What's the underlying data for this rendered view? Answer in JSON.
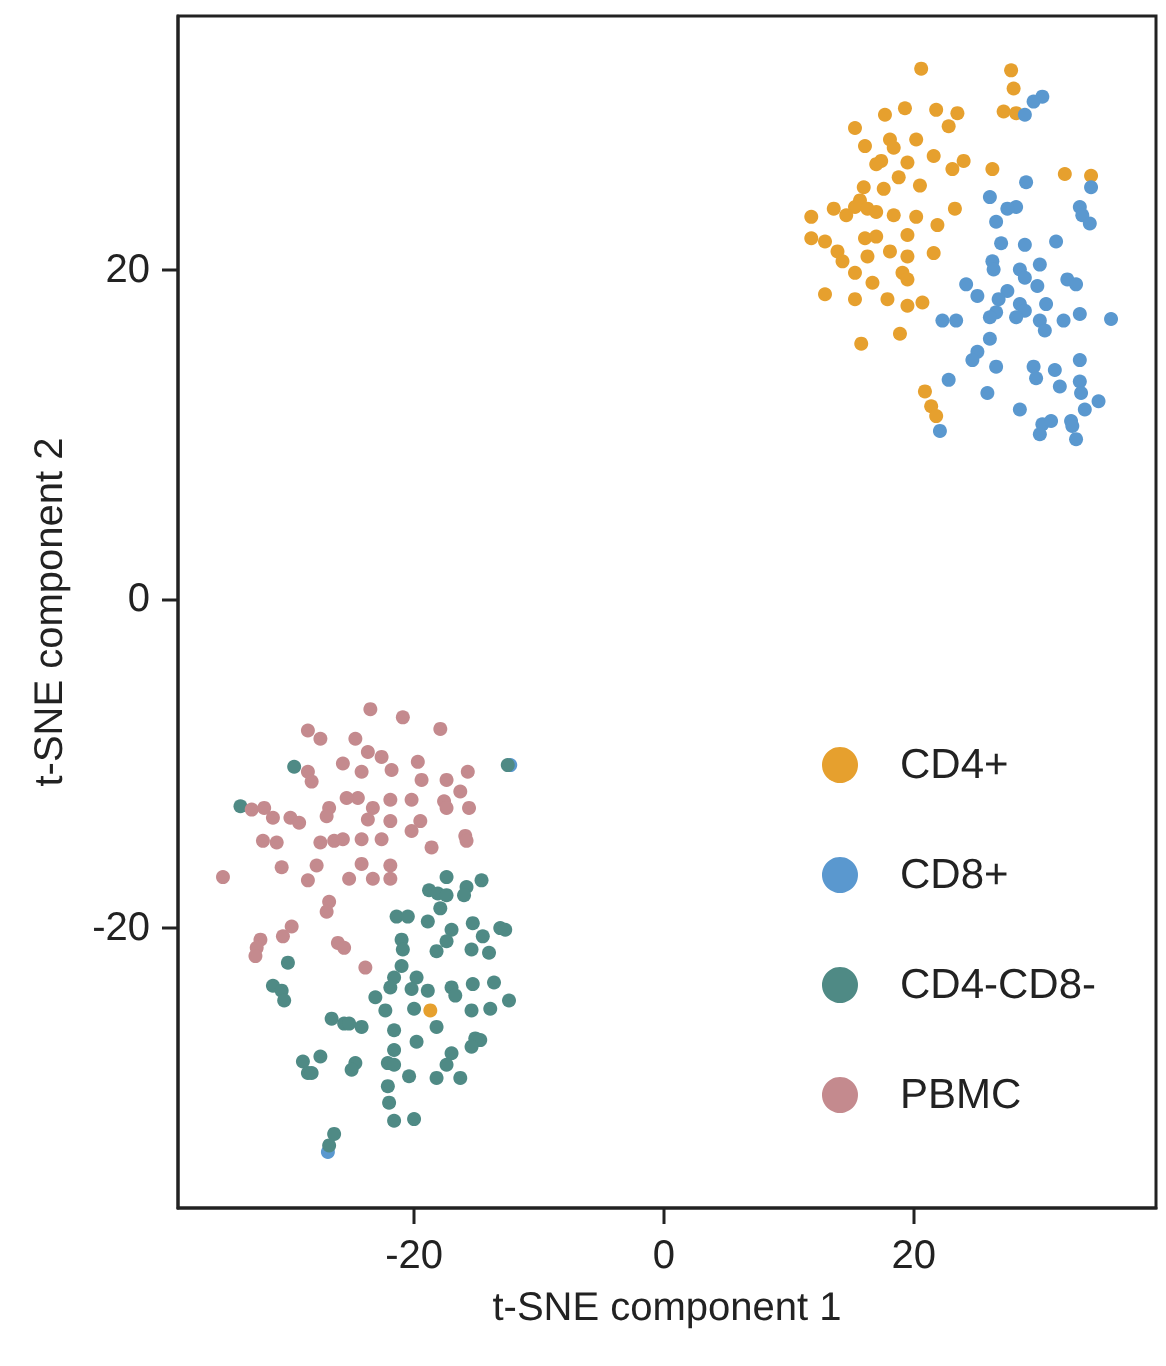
{
  "chart_data": {
    "type": "scatter",
    "xlabel": "t-SNE component 1",
    "ylabel": "t-SNE component 2",
    "xlim": [
      -38.9,
      39.4
    ],
    "ylim": [
      -37,
      35.4
    ],
    "xticks": [
      -20,
      0,
      20
    ],
    "yticks": [
      -20,
      0,
      20
    ],
    "grid": false,
    "legend": "bottom right",
    "marker": "circle",
    "series": [
      {
        "name": "CD4+",
        "color": "#e6a02e",
        "x": [
          20.6,
          27.8,
          28.0,
          27.2,
          28.2,
          17.7,
          19.3,
          21.8,
          23.5,
          22.8,
          15.3,
          18.1,
          20.2,
          16.1,
          18.4,
          17.4,
          21.6,
          17.0,
          19.5,
          24.0,
          23.1,
          26.3,
          32.1,
          34.2,
          18.8,
          16.0,
          17.6,
          20.5,
          15.7,
          15.3,
          16.3,
          13.6,
          11.8,
          14.6,
          17.0,
          18.4,
          20.2,
          23.3,
          11.8,
          12.9,
          16.1,
          17.0,
          19.5,
          21.9,
          13.9,
          14.3,
          16.3,
          18.1,
          19.5,
          21.6,
          15.3,
          16.7,
          19.1,
          19.5,
          12.9,
          15.3,
          17.9,
          19.5,
          20.7,
          15.8,
          18.9,
          20.9,
          21.4,
          21.8,
          -18.7
        ],
        "values": [
          32.2,
          32.1,
          31.0,
          29.6,
          29.5,
          29.4,
          29.8,
          29.7,
          29.5,
          28.7,
          28.6,
          27.9,
          27.9,
          27.5,
          27.4,
          26.6,
          26.9,
          26.4,
          26.5,
          26.6,
          26.1,
          26.1,
          25.8,
          25.7,
          25.6,
          25.0,
          24.9,
          25.1,
          24.2,
          23.8,
          23.7,
          23.7,
          23.2,
          23.3,
          23.5,
          23.3,
          23.2,
          23.7,
          21.9,
          21.7,
          21.9,
          22.0,
          22.1,
          22.7,
          21.1,
          20.5,
          20.8,
          21.1,
          20.8,
          21.0,
          19.8,
          19.2,
          19.8,
          19.4,
          18.5,
          18.2,
          18.2,
          17.8,
          18.0,
          15.5,
          16.1,
          12.6,
          11.7,
          11.1,
          -25.0
        ]
      },
      {
        "name": "CD8+",
        "color": "#5a98cf",
        "x": [
          30.3,
          29.6,
          28.9,
          34.2,
          29.0,
          26.1,
          28.2,
          27.5,
          26.6,
          33.3,
          33.5,
          34.1,
          31.4,
          27.0,
          28.9,
          26.3,
          26.4,
          28.5,
          28.9,
          30.1,
          32.3,
          33.0,
          24.2,
          27.5,
          29.9,
          25.1,
          26.8,
          26.6,
          28.5,
          28.9,
          30.6,
          33.3,
          35.8,
          22.3,
          23.4,
          26.1,
          28.2,
          30.1,
          30.5,
          32.0,
          26.1,
          25.1,
          24.7,
          29.6,
          29.8,
          31.3,
          33.3,
          26.6,
          22.8,
          25.9,
          31.7,
          33.3,
          33.4,
          34.8,
          28.5,
          33.7,
          32.6,
          32.7,
          30.3,
          31.0,
          30.1,
          33.0,
          22.1,
          -12.3,
          -26.9
        ],
        "values": [
          30.5,
          30.2,
          29.4,
          25.0,
          25.3,
          24.4,
          23.8,
          23.7,
          22.9,
          23.8,
          23.3,
          22.8,
          21.7,
          21.6,
          21.5,
          20.5,
          20.0,
          20.0,
          19.5,
          20.3,
          19.4,
          19.1,
          19.1,
          18.7,
          19.0,
          18.4,
          18.2,
          17.4,
          17.9,
          17.5,
          17.9,
          17.3,
          17.0,
          16.9,
          16.9,
          17.1,
          17.1,
          16.9,
          16.3,
          16.9,
          15.8,
          15.0,
          14.5,
          14.1,
          13.4,
          13.9,
          14.5,
          14.1,
          13.3,
          12.5,
          12.9,
          13.2,
          12.5,
          12.0,
          11.5,
          11.5,
          10.8,
          10.5,
          10.6,
          10.8,
          10.0,
          9.7,
          10.2,
          -10.1,
          -33.6
        ]
      },
      {
        "name": "CD4-CD8-",
        "color": "#4f8a85",
        "x": [
          -29.6,
          -33.9,
          -12.5,
          -17.4,
          -18.8,
          -18.1,
          -17.4,
          -15.8,
          -16.0,
          -14.6,
          -17.9,
          -21.4,
          -20.5,
          -18.9,
          -17.0,
          -17.4,
          -15.3,
          -14.5,
          -13.1,
          -12.7,
          -21.0,
          -20.9,
          -18.2,
          -30.1,
          -15.4,
          -14.0,
          -21.0,
          -19.8,
          -20.2,
          -21.6,
          -21.9,
          -31.3,
          -30.6,
          -30.4,
          -17.0,
          -16.7,
          -15.3,
          -13.6,
          -12.4,
          -23.1,
          -18.9,
          -15.4,
          -22.3,
          -20.0,
          -13.9,
          -26.6,
          -25.6,
          -25.2,
          -24.2,
          -21.6,
          -18.2,
          -19.8,
          -15.1,
          -14.7,
          -15.4,
          -21.6,
          -17.0,
          -17.4,
          -28.9,
          -28.5,
          -28.2,
          -27.5,
          -24.7,
          -25.0,
          -22.1,
          -21.6,
          -20.4,
          -18.2,
          -16.3,
          -22.1,
          -22.0,
          -21.6,
          -20.0,
          -26.4,
          -26.8
        ],
        "values": [
          -10.2,
          -12.6,
          -10.1,
          -16.9,
          -17.7,
          -17.9,
          -18.0,
          -17.5,
          -18.0,
          -17.1,
          -18.8,
          -19.3,
          -19.3,
          -19.6,
          -20.1,
          -20.8,
          -19.7,
          -20.5,
          -20.0,
          -20.1,
          -20.7,
          -21.3,
          -21.4,
          -22.1,
          -21.3,
          -21.5,
          -22.3,
          -23.0,
          -23.7,
          -23.0,
          -23.6,
          -23.5,
          -23.8,
          -24.4,
          -23.6,
          -24.1,
          -23.4,
          -23.3,
          -24.4,
          -24.2,
          -23.8,
          -25.0,
          -25.0,
          -24.9,
          -24.9,
          -25.5,
          -25.8,
          -25.8,
          -26.0,
          -26.2,
          -26.0,
          -26.9,
          -26.7,
          -26.8,
          -27.2,
          -27.4,
          -27.6,
          -28.3,
          -28.1,
          -28.8,
          -28.8,
          -27.8,
          -28.2,
          -28.6,
          -28.2,
          -28.3,
          -29.0,
          -29.1,
          -29.1,
          -29.6,
          -30.6,
          -31.7,
          -31.6,
          -32.5,
          -33.2
        ]
      },
      {
        "name": "PBMC",
        "color": "#c48a8e",
        "x": [
          -23.5,
          -20.9,
          -17.9,
          -28.5,
          -27.5,
          -24.7,
          -23.7,
          -22.6,
          -21.8,
          -19.7,
          -25.7,
          -28.5,
          -28.2,
          -24.2,
          -15.7,
          -17.4,
          -19.4,
          -16.3,
          -24.5,
          -25.4,
          -21.9,
          -20.2,
          -17.6,
          -17.4,
          -15.6,
          -33.0,
          -32.0,
          -31.3,
          -26.8,
          -27.0,
          -23.3,
          -23.7,
          -29.9,
          -29.2,
          -21.9,
          -19.5,
          -27.5,
          -26.4,
          -25.7,
          -24.2,
          -22.6,
          -20.2,
          -18.6,
          -15.9,
          -15.8,
          -32.1,
          -31.0,
          -35.3,
          -30.6,
          -27.8,
          -24.2,
          -23.3,
          -21.9,
          -25.2,
          -21.9,
          -28.5,
          -26.8,
          -27.0,
          -29.8,
          -30.5,
          -32.3,
          -32.6,
          -32.7,
          -26.1,
          -25.6,
          -23.9
        ],
        "values": [
          -6.7,
          -7.2,
          -7.9,
          -8.0,
          -8.5,
          -8.5,
          -9.3,
          -9.6,
          -10.4,
          -9.9,
          -10.0,
          -10.5,
          -11.1,
          -10.5,
          -10.5,
          -11.0,
          -11.0,
          -11.7,
          -12.1,
          -12.1,
          -12.2,
          -12.2,
          -12.3,
          -12.7,
          -12.7,
          -12.8,
          -12.7,
          -13.3,
          -12.7,
          -13.2,
          -12.7,
          -13.4,
          -13.3,
          -13.6,
          -13.5,
          -13.5,
          -14.8,
          -14.7,
          -14.6,
          -14.6,
          -14.6,
          -14.1,
          -15.1,
          -14.4,
          -14.7,
          -14.7,
          -14.8,
          -16.9,
          -16.3,
          -16.2,
          -16.1,
          -17.0,
          -16.2,
          -17.0,
          -17.0,
          -17.1,
          -18.4,
          -19.0,
          -19.9,
          -20.5,
          -20.7,
          -21.2,
          -21.7,
          -20.9,
          -21.2,
          -22.4
        ]
      }
    ]
  }
}
